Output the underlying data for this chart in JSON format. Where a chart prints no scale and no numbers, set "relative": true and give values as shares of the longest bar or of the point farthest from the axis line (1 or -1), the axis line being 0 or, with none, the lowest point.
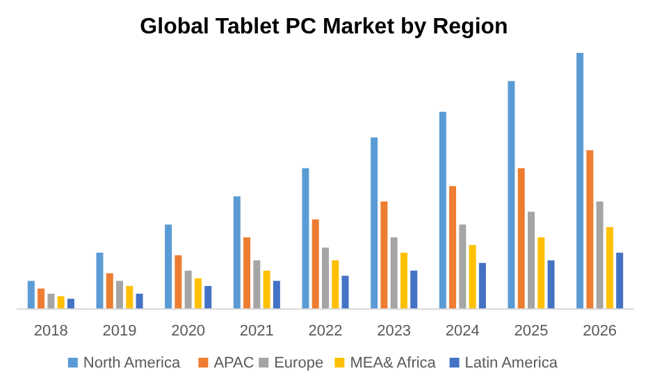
{
  "chart_data": {
    "type": "bar",
    "title": "Global Tablet PC Market by Region",
    "relative": true,
    "categories": [
      "2018",
      "2019",
      "2020",
      "2021",
      "2022",
      "2023",
      "2024",
      "2025",
      "2026"
    ],
    "series": [
      {
        "name": "North America",
        "color": "#5b9bd5",
        "values": [
          0.11,
          0.22,
          0.33,
          0.44,
          0.55,
          0.67,
          0.77,
          0.89,
          1
        ]
      },
      {
        "name": "APAC",
        "color": "#ed7d31",
        "values": [
          0.08,
          0.14,
          0.21,
          0.28,
          0.35,
          0.42,
          0.48,
          0.55,
          0.62
        ]
      },
      {
        "name": "Europe",
        "color": "#a5a5a5",
        "values": [
          0.06,
          0.11,
          0.15,
          0.19,
          0.24,
          0.28,
          0.33,
          0.38,
          0.42
        ]
      },
      {
        "name": "MEA& Africa",
        "color": "#ffc000",
        "values": [
          0.05,
          0.09,
          0.12,
          0.15,
          0.19,
          0.22,
          0.25,
          0.28,
          0.32
        ]
      },
      {
        "name": "Latin America",
        "color": "#4472c4",
        "values": [
          0.04,
          0.06,
          0.09,
          0.11,
          0.13,
          0.15,
          0.18,
          0.19,
          0.22
        ]
      }
    ],
    "legend": "bottom"
  }
}
